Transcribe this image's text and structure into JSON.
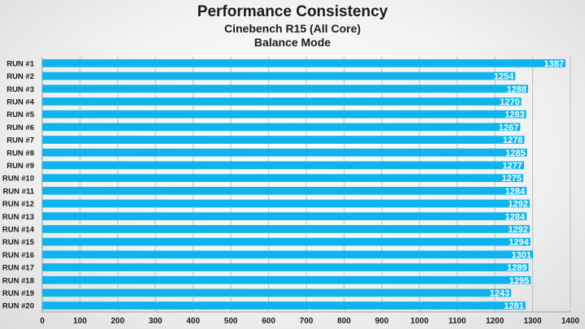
{
  "chart_data": {
    "type": "bar",
    "orientation": "horizontal",
    "title": "Performance Consistency",
    "subtitle": "Cinebench R15 (All Core)",
    "subtitle2": "Balance Mode",
    "categories": [
      "RUN #1",
      "RUN #2",
      "RUN #3",
      "RUN #4",
      "RUN #5",
      "RUN #6",
      "RUN #7",
      "RUN #8",
      "RUN #9",
      "RUN #10",
      "RUN #11",
      "RUN #12",
      "RUN #13",
      "RUN #14",
      "RUN #15",
      "RUN #16",
      "RUN #17",
      "RUN #18",
      "RUN #19",
      "RUN #20"
    ],
    "values": [
      1387,
      1254,
      1288,
      1270,
      1283,
      1267,
      1278,
      1285,
      1277,
      1275,
      1284,
      1292,
      1284,
      1292,
      1294,
      1301,
      1289,
      1295,
      1243,
      1281
    ],
    "xlim": [
      0,
      1400
    ],
    "xticks": [
      0,
      100,
      200,
      300,
      400,
      500,
      600,
      700,
      800,
      900,
      1000,
      1100,
      1200,
      1300,
      1400
    ],
    "grid": true,
    "bar_color": "#0fb4ef",
    "label_color": "#ffffff",
    "text_color": "#1a1a1a",
    "grid_color": "#bfbfbf"
  }
}
